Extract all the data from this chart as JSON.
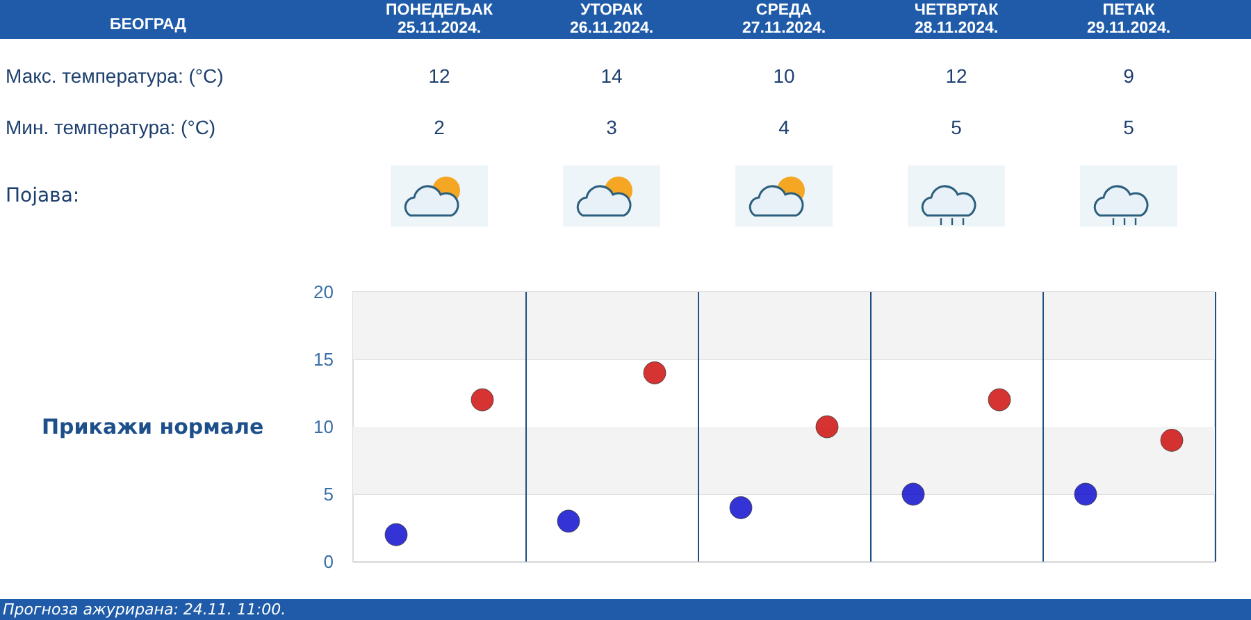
{
  "chart_data": [
    {
      "type": "heatmap",
      "title": "БЕОГРАД",
      "categories": [
        "ПОНЕДЕЉАК\n25.11.2024.",
        "УТОРАК\n26.11.2024.",
        "СРЕДА\n27.11.2024.",
        "ЧЕТВРТАК\n28.11.2024.",
        "ПЕТАК\n29.11.2024."
      ],
      "y_categories": [
        "Макс. температура: (°C)",
        "Мин. температура: (°C)"
      ],
      "cells": [
        [
          12,
          14,
          10,
          12,
          9
        ],
        [
          2,
          3,
          4,
          5,
          5
        ]
      ],
      "data_labels": true,
      "annotations": [
        "Појава:"
      ]
    },
    {
      "type": "scatter",
      "categories": [
        null,
        null,
        null,
        null,
        null,
        null,
        null,
        null,
        null,
        null
      ],
      "ylim": [
        0,
        20
      ],
      "yticks": [
        0,
        5,
        10,
        15,
        20
      ],
      "grid": true,
      "tick_labels": "y",
      "marker": "circle",
      "bands": [
        {
          "axis": "y",
          "from": 5,
          "to": 10,
          "color": "#f3f3f3"
        },
        {
          "axis": "y",
          "from": 15,
          "to": 20,
          "color": "#f3f3f3"
        }
      ],
      "series": [
        {
          "color": "#0000cc",
          "values": [
            2,
            null,
            3,
            null,
            4,
            null,
            5,
            null,
            5,
            null
          ]
        },
        {
          "color": "#cc0000",
          "values": [
            null,
            12,
            null,
            14,
            null,
            10,
            null,
            12,
            null,
            9
          ]
        }
      ],
      "annotations": [
        "Прикажи нормале",
        "Прогноза ажурирана:  24.11. 11:00."
      ]
    }
  ]
}
